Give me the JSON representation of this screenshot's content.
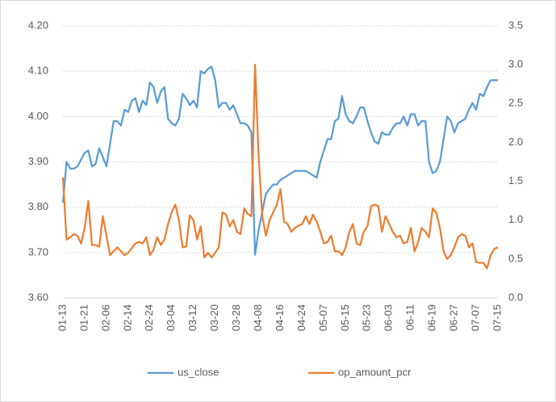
{
  "chart_data": {
    "type": "line",
    "categories": [
      "01-13",
      null,
      null,
      null,
      null,
      null,
      "01-21",
      null,
      null,
      null,
      null,
      null,
      "02-06",
      null,
      null,
      null,
      null,
      null,
      "02-14",
      null,
      null,
      null,
      null,
      null,
      "02-24",
      null,
      null,
      null,
      null,
      null,
      "03-04",
      null,
      null,
      null,
      null,
      null,
      "03-12",
      null,
      null,
      null,
      null,
      null,
      "03-20",
      null,
      null,
      null,
      null,
      null,
      "03-28",
      null,
      null,
      null,
      null,
      null,
      "04-08",
      null,
      null,
      null,
      null,
      null,
      "04-16",
      null,
      null,
      null,
      null,
      null,
      "04-24",
      null,
      null,
      null,
      null,
      null,
      "05-07",
      null,
      null,
      null,
      null,
      null,
      "05-15",
      null,
      null,
      null,
      null,
      null,
      "05-23",
      null,
      null,
      null,
      null,
      null,
      "06-03",
      null,
      null,
      null,
      null,
      null,
      "06-11",
      null,
      null,
      null,
      null,
      null,
      "06-19",
      null,
      null,
      null,
      null,
      null,
      "06-27",
      null,
      null,
      null,
      null,
      null,
      "07-07",
      null,
      null,
      null,
      null,
      null,
      "07-15"
    ],
    "series": [
      {
        "name": "us_close",
        "color": "#5b9bd5",
        "values": [
          3.81,
          3.9,
          3.885,
          3.885,
          3.89,
          3.905,
          3.92,
          3.925,
          3.89,
          3.895,
          3.93,
          3.91,
          3.89,
          3.94,
          3.99,
          3.99,
          3.98,
          4.015,
          4.01,
          4.035,
          4.04,
          4.01,
          4.035,
          4.025,
          4.075,
          4.065,
          4.03,
          4.055,
          4.065,
          3.995,
          3.985,
          3.98,
          3.995,
          4.05,
          4.04,
          4.025,
          4.035,
          4.02,
          4.1,
          4.095,
          4.105,
          4.11,
          4.08,
          4.02,
          4.03,
          4.03,
          4.015,
          4.025,
          4.005,
          3.985,
          3.985,
          3.98,
          3.965,
          3.695,
          3.75,
          3.79,
          3.83,
          3.84,
          3.85,
          3.85,
          3.86,
          3.865,
          3.87,
          3.875,
          3.88,
          3.88,
          3.88,
          3.88,
          3.875,
          3.87,
          3.865,
          3.9,
          3.925,
          3.95,
          3.95,
          3.99,
          3.995,
          4.045,
          4.005,
          3.99,
          3.985,
          4.0,
          4.02,
          4.02,
          3.99,
          3.965,
          3.945,
          3.94,
          3.965,
          3.96,
          3.96,
          3.975,
          3.985,
          3.985,
          4.0,
          3.98,
          4.005,
          4.005,
          3.98,
          3.99,
          3.99,
          3.9,
          3.875,
          3.88,
          3.9,
          3.95,
          4.0,
          3.99,
          3.965,
          3.985,
          3.99,
          3.995,
          4.015,
          4.03,
          4.015,
          4.05,
          4.045,
          4.065,
          4.08,
          4.08,
          4.08
        ]
      },
      {
        "name": "op_amount_pcr",
        "color": "#ed7d31",
        "axis": "y2",
        "values": [
          1.55,
          0.75,
          0.78,
          0.82,
          0.8,
          0.7,
          0.9,
          1.25,
          0.68,
          0.68,
          0.66,
          1.05,
          0.8,
          0.55,
          0.6,
          0.65,
          0.6,
          0.55,
          0.58,
          0.64,
          0.7,
          0.72,
          0.7,
          0.78,
          0.55,
          0.62,
          0.78,
          0.68,
          0.75,
          0.95,
          1.1,
          1.2,
          1.0,
          0.65,
          0.66,
          1.06,
          1.0,
          0.75,
          0.92,
          0.52,
          0.58,
          0.52,
          0.58,
          0.65,
          1.1,
          1.07,
          0.92,
          1.0,
          0.85,
          0.82,
          1.15,
          1.08,
          1.05,
          3.0,
          1.8,
          1.05,
          0.8,
          1.0,
          1.1,
          1.2,
          1.4,
          0.98,
          0.95,
          0.85,
          0.9,
          0.93,
          0.95,
          1.05,
          0.95,
          1.07,
          0.98,
          0.85,
          0.7,
          0.72,
          0.8,
          0.6,
          0.6,
          0.55,
          0.65,
          0.85,
          0.95,
          0.7,
          0.68,
          0.85,
          0.92,
          1.18,
          1.2,
          1.18,
          0.85,
          1.05,
          0.95,
          0.85,
          0.78,
          0.8,
          0.7,
          0.72,
          0.9,
          0.6,
          0.72,
          0.9,
          0.85,
          0.78,
          1.15,
          1.1,
          0.9,
          0.6,
          0.5,
          0.55,
          0.65,
          0.78,
          0.82,
          0.8,
          0.65,
          0.7,
          0.46,
          0.45,
          0.45,
          0.38,
          0.55,
          0.63,
          0.65
        ]
      }
    ],
    "ylim": [
      3.6,
      4.2
    ],
    "yticks": [
      {
        "value": 3.6,
        "label": "3.60"
      },
      {
        "value": 3.7,
        "label": "3.70"
      },
      {
        "value": 3.8,
        "label": "3.80"
      },
      {
        "value": 3.9,
        "label": "3.90"
      },
      {
        "value": 4.0,
        "label": "4.00"
      },
      {
        "value": 4.1,
        "label": "4.10"
      },
      {
        "value": 4.2,
        "label": "4.20"
      }
    ],
    "y2lim": [
      0,
      3.5
    ],
    "y2ticks": [
      {
        "value": 0,
        "label": "0.0"
      },
      0.5,
      {
        "value": 1,
        "label": "1.0"
      },
      1.5,
      {
        "value": 2,
        "label": "2.0"
      },
      2.5,
      {
        "value": 3,
        "label": "3.0"
      },
      3.5
    ],
    "grid": true,
    "legend": "bottom"
  }
}
